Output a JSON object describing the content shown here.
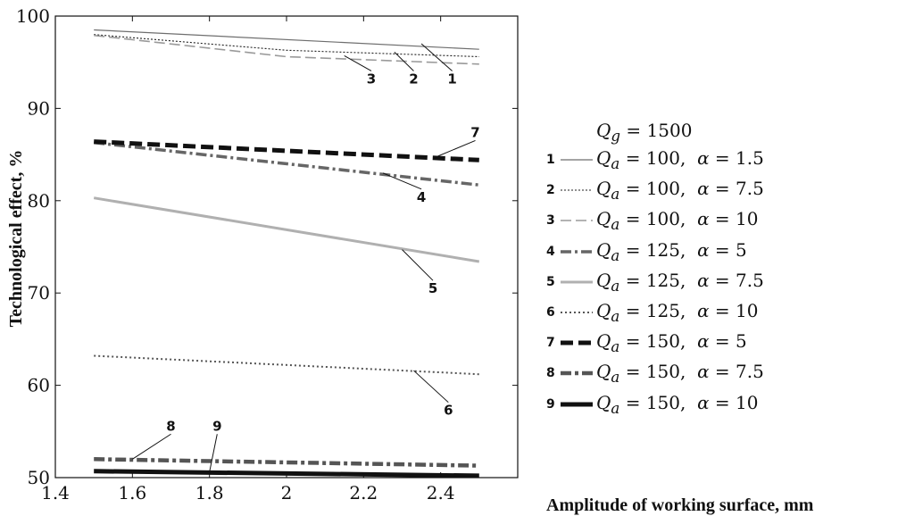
{
  "chart_data": {
    "type": "line",
    "title": "",
    "xlabel": "Amplitude of working surface, mm",
    "ylabel": "Technological effect, %",
    "xlim": [
      1.4,
      2.6
    ],
    "ylim": [
      50,
      100
    ],
    "xticks": [
      "1.4",
      "1.6",
      "1.8",
      "2",
      "2.2",
      "2.4"
    ],
    "yticks": [
      "50",
      "60",
      "70",
      "80",
      "90",
      "100"
    ],
    "legend_header": "Qg = 1500",
    "legend_position": "right",
    "series": [
      {
        "name": "Qa = 100, α = 1.5",
        "label": "1",
        "x": [
          1.5,
          2.5
        ],
        "y": [
          98.5,
          96.4
        ],
        "color": "#6e6e6e",
        "style": "solid-thin"
      },
      {
        "name": "Qa = 100, α = 7.5",
        "label": "2",
        "x": [
          1.5,
          2.0,
          2.5
        ],
        "y": [
          98.0,
          96.3,
          95.6
        ],
        "color": "#222222",
        "style": "dotted-thin"
      },
      {
        "name": "Qa = 100, α = 10",
        "label": "3",
        "x": [
          1.5,
          2.0,
          2.5
        ],
        "y": [
          97.9,
          95.6,
          94.8
        ],
        "color": "#9a9a9a",
        "style": "dashed"
      },
      {
        "name": "Qa = 125, α = 5",
        "label": "4",
        "x": [
          1.5,
          2.5
        ],
        "y": [
          86.3,
          81.7
        ],
        "color": "#666666",
        "style": "dashdot"
      },
      {
        "name": "Qa = 125, α = 7.5",
        "label": "5",
        "x": [
          1.5,
          2.5
        ],
        "y": [
          80.3,
          73.4
        ],
        "color": "#b0b0b0",
        "style": "solid-thick"
      },
      {
        "name": "Qa = 125, α = 10",
        "label": "6",
        "x": [
          1.5,
          2.5
        ],
        "y": [
          63.2,
          61.2
        ],
        "color": "#555555",
        "style": "dotted"
      },
      {
        "name": "Qa = 150, α = 5",
        "label": "7",
        "x": [
          1.5,
          2.5
        ],
        "y": [
          86.4,
          84.4
        ],
        "color": "#111111",
        "style": "dashed-thick"
      },
      {
        "name": "Qa = 150, α = 7.5",
        "label": "8",
        "x": [
          1.5,
          2.5
        ],
        "y": [
          52.0,
          51.3
        ],
        "color": "#555555",
        "style": "dashdot-thick"
      },
      {
        "name": "Qa = 150, α = 10",
        "label": "9",
        "x": [
          1.5,
          2.5
        ],
        "y": [
          50.7,
          50.2
        ],
        "color": "#111111",
        "style": "solid-heavy"
      }
    ],
    "annotations": [
      {
        "text": "1",
        "series": "1",
        "anchor": [
          2.35,
          97.0
        ],
        "text_at": [
          2.43,
          92.7
        ]
      },
      {
        "text": "2",
        "series": "2",
        "anchor": [
          2.28,
          96.1
        ],
        "text_at": [
          2.33,
          92.7
        ]
      },
      {
        "text": "3",
        "series": "3",
        "anchor": [
          2.15,
          95.7
        ],
        "text_at": [
          2.22,
          92.7
        ]
      },
      {
        "text": "7",
        "series": "7",
        "anchor": [
          2.38,
          84.6
        ],
        "text_at": [
          2.49,
          86.9
        ]
      },
      {
        "text": "4",
        "series": "4",
        "anchor": [
          2.25,
          83.0
        ],
        "text_at": [
          2.35,
          79.9
        ]
      },
      {
        "text": "5",
        "series": "5",
        "anchor": [
          2.3,
          74.7
        ],
        "text_at": [
          2.38,
          70.0
        ]
      },
      {
        "text": "6",
        "series": "6",
        "anchor": [
          2.33,
          61.6
        ],
        "text_at": [
          2.42,
          56.8
        ]
      },
      {
        "text": "8",
        "series": "8",
        "anchor": [
          1.6,
          52.0
        ],
        "text_at": [
          1.7,
          55.1
        ]
      },
      {
        "text": "9",
        "series": "9",
        "anchor": [
          1.8,
          50.6
        ],
        "text_at": [
          1.82,
          55.1
        ]
      }
    ]
  }
}
